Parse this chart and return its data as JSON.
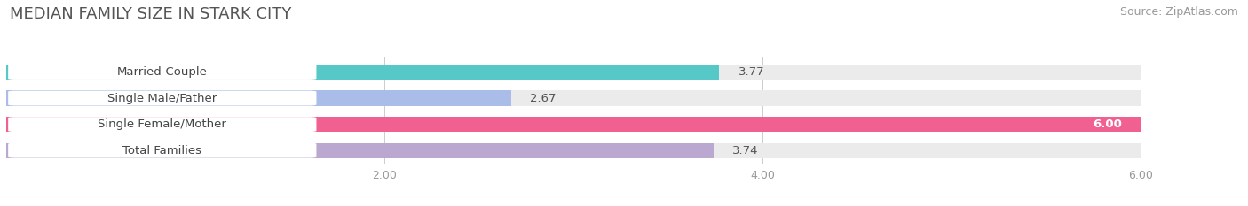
{
  "title": "MEDIAN FAMILY SIZE IN STARK CITY",
  "source": "Source: ZipAtlas.com",
  "categories": [
    "Married-Couple",
    "Single Male/Father",
    "Single Female/Mother",
    "Total Families"
  ],
  "values": [
    3.77,
    2.67,
    6.0,
    3.74
  ],
  "bar_colors": [
    "#56C8C8",
    "#AABCE8",
    "#F06090",
    "#BBA8D0"
  ],
  "bg_bar_color": "#EBEBEB",
  "label_bg_color": "#FFFFFF",
  "xdata_min": 0.0,
  "xdata_max": 6.0,
  "xlim_left": 0.0,
  "xlim_right": 6.5,
  "xticks": [
    2.0,
    4.0,
    6.0
  ],
  "bar_height": 0.58,
  "background_color": "#FFFFFF",
  "title_fontsize": 13,
  "source_fontsize": 9,
  "label_fontsize": 9.5,
  "value_fontsize": 9.5,
  "title_color": "#555555",
  "label_text_color": "#444444",
  "value_text_color_dark": "#555555",
  "value_text_color_light": "#FFFFFF",
  "tick_color": "#999999"
}
